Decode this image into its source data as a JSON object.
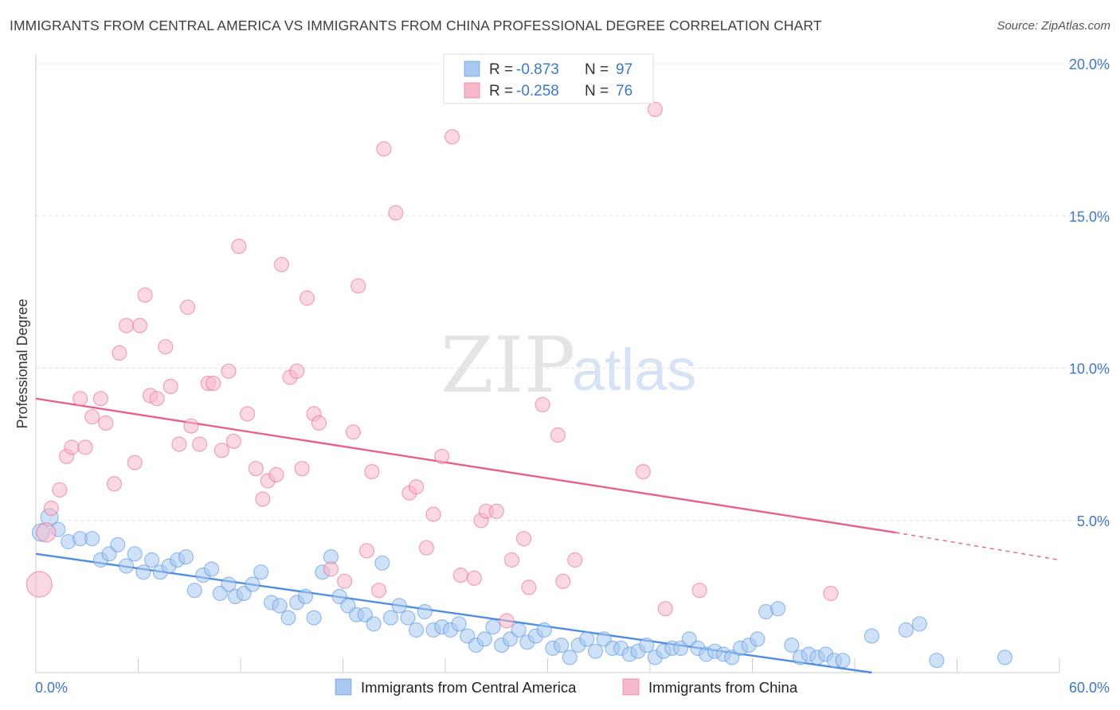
{
  "title": "IMMIGRANTS FROM CENTRAL AMERICA VS IMMIGRANTS FROM CHINA PROFESSIONAL DEGREE CORRELATION CHART",
  "source": "Source: ZipAtlas.com",
  "watermark": {
    "zip": "ZIP",
    "atlas": "atlas"
  },
  "stats_legend": [
    {
      "r_label": "R =",
      "r_value": "-0.873",
      "n_label": "N =",
      "n_value": "97",
      "color": "#a8c8f0"
    },
    {
      "r_label": "R =",
      "r_value": "-0.258",
      "n_label": "N =",
      "n_value": "76",
      "color": "#f6b8cb"
    }
  ],
  "bottom_legend": [
    {
      "label": "Immigrants from Central America",
      "color": "#a8c8f0"
    },
    {
      "label": "Immigrants from China",
      "color": "#f6b8cb"
    }
  ],
  "chart_data": {
    "type": "scatter",
    "title": "IMMIGRANTS FROM CENTRAL AMERICA VS IMMIGRANTS FROM CHINA PROFESSIONAL DEGREE CORRELATION CHART",
    "xlabel": "",
    "ylabel": "Professional Degree",
    "xlim": [
      0,
      60
    ],
    "ylim": [
      0,
      20
    ],
    "x_tick_labels": [
      "0.0%",
      "60.0%"
    ],
    "y_ticks": [
      5,
      10,
      15,
      20
    ],
    "y_tick_labels": [
      "5.0%",
      "10.0%",
      "15.0%",
      "20.0%"
    ],
    "grid": "horizontal dashed",
    "legend": "top-center",
    "series": [
      {
        "name": "Immigrants from Central America",
        "color": "#4f8fe0",
        "fill": "#a8c8f0",
        "trend": {
          "x": [
            0,
            49
          ],
          "y": [
            3.9,
            0
          ]
        },
        "points": [
          [
            0.3,
            4.6
          ],
          [
            0.8,
            5.1
          ],
          [
            1.3,
            4.7
          ],
          [
            1.9,
            4.3
          ],
          [
            2.6,
            4.4
          ],
          [
            3.3,
            4.4
          ],
          [
            3.8,
            3.7
          ],
          [
            4.3,
            3.9
          ],
          [
            4.8,
            4.2
          ],
          [
            5.3,
            3.5
          ],
          [
            5.8,
            3.9
          ],
          [
            6.3,
            3.3
          ],
          [
            6.8,
            3.7
          ],
          [
            7.3,
            3.3
          ],
          [
            7.8,
            3.5
          ],
          [
            8.3,
            3.7
          ],
          [
            8.8,
            3.8
          ],
          [
            9.3,
            2.7
          ],
          [
            9.8,
            3.2
          ],
          [
            10.3,
            3.4
          ],
          [
            10.8,
            2.6
          ],
          [
            11.3,
            2.9
          ],
          [
            11.7,
            2.5
          ],
          [
            12.2,
            2.6
          ],
          [
            12.7,
            2.9
          ],
          [
            13.2,
            3.3
          ],
          [
            13.8,
            2.3
          ],
          [
            14.3,
            2.2
          ],
          [
            14.8,
            1.8
          ],
          [
            15.3,
            2.3
          ],
          [
            15.8,
            2.5
          ],
          [
            16.3,
            1.8
          ],
          [
            16.8,
            3.3
          ],
          [
            17.3,
            3.8
          ],
          [
            17.8,
            2.5
          ],
          [
            18.3,
            2.2
          ],
          [
            18.8,
            1.9
          ],
          [
            19.3,
            1.9
          ],
          [
            19.8,
            1.6
          ],
          [
            20.3,
            3.6
          ],
          [
            20.8,
            1.8
          ],
          [
            21.3,
            2.2
          ],
          [
            21.8,
            1.8
          ],
          [
            22.3,
            1.4
          ],
          [
            22.8,
            2.0
          ],
          [
            23.3,
            1.4
          ],
          [
            23.8,
            1.5
          ],
          [
            24.3,
            1.4
          ],
          [
            24.8,
            1.6
          ],
          [
            25.3,
            1.2
          ],
          [
            25.8,
            0.9
          ],
          [
            26.3,
            1.1
          ],
          [
            26.8,
            1.5
          ],
          [
            27.3,
            0.9
          ],
          [
            27.8,
            1.1
          ],
          [
            28.3,
            1.4
          ],
          [
            28.8,
            1.0
          ],
          [
            29.3,
            1.2
          ],
          [
            29.8,
            1.4
          ],
          [
            30.3,
            0.8
          ],
          [
            30.8,
            0.9
          ],
          [
            31.3,
            0.5
          ],
          [
            31.8,
            0.9
          ],
          [
            32.3,
            1.1
          ],
          [
            32.8,
            0.7
          ],
          [
            33.3,
            1.1
          ],
          [
            33.8,
            0.8
          ],
          [
            34.3,
            0.8
          ],
          [
            34.8,
            0.6
          ],
          [
            35.3,
            0.7
          ],
          [
            35.8,
            0.9
          ],
          [
            36.3,
            0.5
          ],
          [
            36.8,
            0.7
          ],
          [
            37.3,
            0.8
          ],
          [
            37.8,
            0.8
          ],
          [
            38.3,
            1.1
          ],
          [
            38.8,
            0.8
          ],
          [
            39.3,
            0.6
          ],
          [
            39.8,
            0.7
          ],
          [
            40.3,
            0.6
          ],
          [
            40.8,
            0.5
          ],
          [
            41.3,
            0.8
          ],
          [
            41.8,
            0.9
          ],
          [
            42.3,
            1.1
          ],
          [
            42.8,
            2.0
          ],
          [
            43.5,
            2.1
          ],
          [
            44.3,
            0.9
          ],
          [
            44.8,
            0.5
          ],
          [
            45.3,
            0.6
          ],
          [
            45.8,
            0.5
          ],
          [
            46.3,
            0.6
          ],
          [
            46.8,
            0.4
          ],
          [
            47.3,
            0.4
          ],
          [
            49.0,
            1.2
          ],
          [
            51.0,
            1.4
          ],
          [
            51.8,
            1.6
          ],
          [
            56.8,
            0.5
          ],
          [
            52.8,
            0.4
          ]
        ]
      },
      {
        "name": "Immigrants from China",
        "color": "#e8608f",
        "fill": "#f6b8cb",
        "trend": {
          "x": [
            0,
            50.4
          ],
          "y": [
            9.0,
            4.6
          ]
        },
        "trend_dashed": {
          "x": [
            50.4,
            60
          ],
          "y": [
            4.6,
            3.7
          ]
        },
        "points": [
          [
            0.2,
            2.9
          ],
          [
            0.9,
            5.4
          ],
          [
            1.4,
            6.0
          ],
          [
            1.8,
            7.1
          ],
          [
            2.1,
            7.4
          ],
          [
            2.6,
            9.0
          ],
          [
            2.9,
            7.4
          ],
          [
            3.3,
            8.4
          ],
          [
            3.8,
            9.0
          ],
          [
            4.1,
            8.2
          ],
          [
            4.6,
            6.2
          ],
          [
            4.9,
            10.5
          ],
          [
            5.3,
            11.4
          ],
          [
            5.8,
            6.9
          ],
          [
            6.1,
            11.4
          ],
          [
            6.4,
            12.4
          ],
          [
            6.7,
            9.1
          ],
          [
            7.1,
            9.0
          ],
          [
            7.6,
            10.7
          ],
          [
            7.9,
            9.4
          ],
          [
            8.4,
            7.5
          ],
          [
            8.9,
            12.0
          ],
          [
            9.1,
            8.1
          ],
          [
            9.6,
            7.5
          ],
          [
            10.1,
            9.5
          ],
          [
            10.4,
            9.5
          ],
          [
            10.9,
            7.3
          ],
          [
            11.3,
            9.9
          ],
          [
            11.6,
            7.6
          ],
          [
            11.9,
            14.0
          ],
          [
            12.4,
            8.5
          ],
          [
            12.9,
            6.7
          ],
          [
            13.3,
            5.7
          ],
          [
            13.6,
            6.3
          ],
          [
            14.1,
            6.5
          ],
          [
            14.4,
            13.4
          ],
          [
            14.9,
            9.7
          ],
          [
            15.3,
            9.9
          ],
          [
            15.6,
            6.7
          ],
          [
            15.9,
            12.3
          ],
          [
            16.3,
            8.5
          ],
          [
            16.6,
            8.2
          ],
          [
            17.3,
            3.4
          ],
          [
            18.1,
            3.0
          ],
          [
            18.6,
            7.9
          ],
          [
            18.9,
            12.7
          ],
          [
            19.4,
            4.0
          ],
          [
            19.7,
            6.6
          ],
          [
            20.1,
            2.7
          ],
          [
            20.4,
            17.2
          ],
          [
            21.1,
            15.1
          ],
          [
            21.9,
            5.9
          ],
          [
            22.3,
            6.1
          ],
          [
            22.9,
            4.1
          ],
          [
            23.3,
            5.2
          ],
          [
            23.8,
            7.1
          ],
          [
            24.4,
            17.6
          ],
          [
            24.9,
            3.2
          ],
          [
            25.7,
            3.1
          ],
          [
            26.1,
            5.0
          ],
          [
            26.4,
            5.3
          ],
          [
            27.0,
            5.3
          ],
          [
            27.6,
            1.7
          ],
          [
            27.9,
            3.7
          ],
          [
            28.6,
            4.4
          ],
          [
            28.9,
            2.8
          ],
          [
            29.7,
            8.8
          ],
          [
            30.6,
            7.8
          ],
          [
            30.9,
            3.0
          ],
          [
            31.6,
            3.7
          ],
          [
            35.6,
            6.6
          ],
          [
            36.3,
            18.5
          ],
          [
            36.9,
            2.1
          ],
          [
            38.9,
            2.7
          ],
          [
            46.6,
            2.6
          ],
          [
            0.6,
            4.6
          ]
        ]
      }
    ]
  }
}
